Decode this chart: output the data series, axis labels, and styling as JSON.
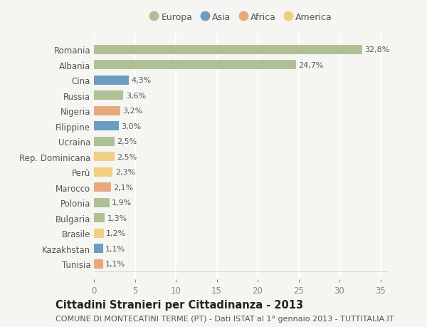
{
  "countries": [
    "Romania",
    "Albania",
    "Cina",
    "Russia",
    "Nigeria",
    "Filippine",
    "Ucraina",
    "Rep. Dominicana",
    "Perù",
    "Marocco",
    "Polonia",
    "Bulgaria",
    "Brasile",
    "Kazakhstan",
    "Tunisia"
  ],
  "values": [
    32.8,
    24.7,
    4.3,
    3.6,
    3.2,
    3.0,
    2.5,
    2.5,
    2.3,
    2.1,
    1.9,
    1.3,
    1.2,
    1.1,
    1.1
  ],
  "labels": [
    "32,8%",
    "24,7%",
    "4,3%",
    "3,6%",
    "3,2%",
    "3,0%",
    "2,5%",
    "2,5%",
    "2,3%",
    "2,1%",
    "1,9%",
    "1,3%",
    "1,2%",
    "1,1%",
    "1,1%"
  ],
  "continents": [
    "Europa",
    "Europa",
    "Asia",
    "Europa",
    "Africa",
    "Asia",
    "Europa",
    "America",
    "America",
    "Africa",
    "Europa",
    "Europa",
    "America",
    "Asia",
    "Africa"
  ],
  "continent_colors": {
    "Europa": "#afc097",
    "Asia": "#6b9dc2",
    "Africa": "#e8a87c",
    "America": "#f0d080"
  },
  "legend_order": [
    "Europa",
    "Asia",
    "Africa",
    "America"
  ],
  "title": "Cittadini Stranieri per Cittadinanza - 2013",
  "subtitle": "COMUNE DI MONTECATINI TERME (PT) - Dati ISTAT al 1° gennaio 2013 - TUTTITALIA.IT",
  "xlim": [
    0,
    36
  ],
  "xticks": [
    0,
    5,
    10,
    15,
    20,
    25,
    30,
    35
  ],
  "background_color": "#f5f5f2",
  "grid_color": "#ffffff",
  "title_fontsize": 10.5,
  "subtitle_fontsize": 8,
  "label_fontsize": 8,
  "tick_fontsize": 8.5,
  "legend_fontsize": 9,
  "bar_height": 0.6
}
